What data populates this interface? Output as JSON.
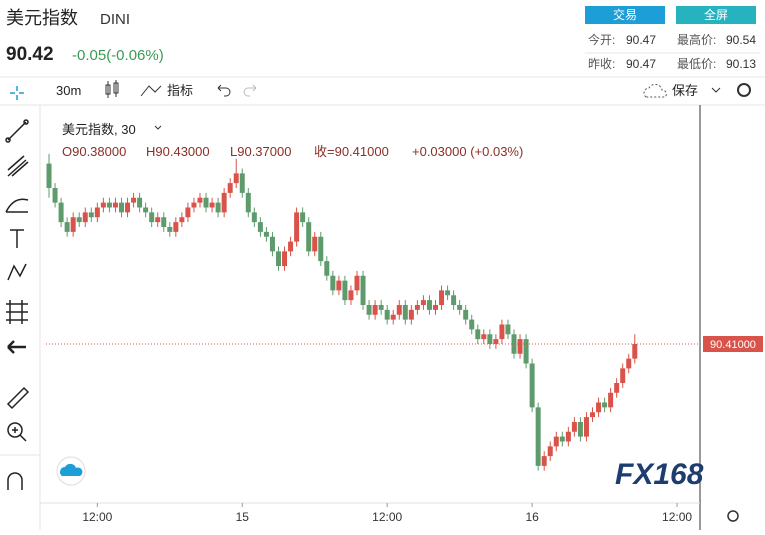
{
  "header": {
    "title": "美元指数",
    "symbol": "DINI",
    "price": "90.42",
    "change": "-0.05(-0.06%)",
    "buttons": [
      "交易",
      "全屏"
    ],
    "stats": [
      [
        "今开:",
        "90.47"
      ],
      [
        "最高价:",
        "90.54"
      ],
      [
        "昨收:",
        "90.47"
      ],
      [
        "最低价:",
        "90.13"
      ]
    ]
  },
  "toolbar": {
    "interval": "30m",
    "indicators": "指标",
    "save": "保存"
  },
  "chart_data": {
    "type": "candlestick",
    "legend_title": "美元指数, 30",
    "legend_values": [
      "O90.38000",
      "H90.43000",
      "L90.37000",
      "收=90.41000",
      "+0.03000 (+0.03%)"
    ],
    "watermark": "FX168",
    "up_color": "#d9534a",
    "down_color": "#5d9b6c",
    "last_price": {
      "value": 90.41,
      "label": "90.41000"
    },
    "xlim": [
      7.75,
      61.9
    ],
    "ylim": [
      90.09,
      90.89
    ],
    "xticks": [
      {
        "value": 12,
        "label": "12:00"
      },
      {
        "value": 24,
        "label": "15"
      },
      {
        "value": 36,
        "label": "12:00"
      },
      {
        "value": 48,
        "label": "16"
      },
      {
        "value": 60,
        "label": "12:00"
      }
    ],
    "x": [
      8,
      8.5,
      9,
      9.5,
      10,
      10.5,
      11,
      11.5,
      12,
      12.5,
      13,
      13.5,
      14,
      14.5,
      15,
      15.5,
      16,
      16.5,
      17,
      17.5,
      18,
      18.5,
      19,
      19.5,
      20,
      20.5,
      21,
      21.5,
      22,
      22.5,
      23,
      23.5,
      24,
      24.5,
      25,
      25.5,
      26,
      26.5,
      27,
      27.5,
      28,
      28.5,
      29,
      29.5,
      30,
      30.5,
      31,
      31.5,
      32,
      32.5,
      33,
      33.5,
      34,
      34.5,
      35,
      35.5,
      36,
      36.5,
      37,
      37.5,
      38,
      38.5,
      39,
      39.5,
      40,
      40.5,
      41,
      41.5,
      42,
      42.5,
      43,
      43.5,
      44,
      44.5,
      45,
      45.5,
      46,
      46.5,
      47,
      47.5,
      48,
      48.5,
      49,
      49.5,
      50,
      50.5,
      51,
      51.5,
      52,
      52.5,
      53,
      53.5,
      54,
      54.5,
      55,
      55.5,
      56,
      56.5
    ],
    "ohlc": [
      [
        90.78,
        90.8,
        90.71,
        90.73
      ],
      [
        90.73,
        90.74,
        90.69,
        90.7
      ],
      [
        90.7,
        90.71,
        90.65,
        90.66
      ],
      [
        90.66,
        90.67,
        90.63,
        90.64
      ],
      [
        90.64,
        90.68,
        90.63,
        90.67
      ],
      [
        90.67,
        90.68,
        90.65,
        90.66
      ],
      [
        90.66,
        90.69,
        90.65,
        90.68
      ],
      [
        90.68,
        90.69,
        90.66,
        90.67
      ],
      [
        90.67,
        90.7,
        90.66,
        90.69
      ],
      [
        90.69,
        90.71,
        90.68,
        90.7
      ],
      [
        90.7,
        90.71,
        90.68,
        90.69
      ],
      [
        90.69,
        90.71,
        90.68,
        90.7
      ],
      [
        90.7,
        90.71,
        90.67,
        90.68
      ],
      [
        90.68,
        90.71,
        90.67,
        90.7
      ],
      [
        90.7,
        90.72,
        90.69,
        90.71
      ],
      [
        90.71,
        90.72,
        90.68,
        90.69
      ],
      [
        90.69,
        90.7,
        90.67,
        90.68
      ],
      [
        90.68,
        90.69,
        90.65,
        90.66
      ],
      [
        90.66,
        90.68,
        90.65,
        90.67
      ],
      [
        90.67,
        90.68,
        90.64,
        90.65
      ],
      [
        90.65,
        90.66,
        90.63,
        90.64
      ],
      [
        90.64,
        90.67,
        90.63,
        90.66
      ],
      [
        90.66,
        90.68,
        90.65,
        90.67
      ],
      [
        90.67,
        90.7,
        90.66,
        90.69
      ],
      [
        90.69,
        90.71,
        90.68,
        90.7
      ],
      [
        90.7,
        90.72,
        90.69,
        90.71
      ],
      [
        90.71,
        90.72,
        90.68,
        90.69
      ],
      [
        90.69,
        90.71,
        90.68,
        90.7
      ],
      [
        90.7,
        90.71,
        90.67,
        90.68
      ],
      [
        90.68,
        90.73,
        90.67,
        90.72
      ],
      [
        90.72,
        90.75,
        90.71,
        90.74
      ],
      [
        90.74,
        90.79,
        90.73,
        90.76
      ],
      [
        90.76,
        90.77,
        90.71,
        90.72
      ],
      [
        90.72,
        90.73,
        90.67,
        90.68
      ],
      [
        90.68,
        90.69,
        90.65,
        90.66
      ],
      [
        90.66,
        90.67,
        90.63,
        90.64
      ],
      [
        90.64,
        90.65,
        90.62,
        90.63
      ],
      [
        90.63,
        90.64,
        90.59,
        90.6
      ],
      [
        90.6,
        90.61,
        90.56,
        90.57
      ],
      [
        90.57,
        90.61,
        90.56,
        90.6
      ],
      [
        90.6,
        90.63,
        90.59,
        90.62
      ],
      [
        90.62,
        90.69,
        90.61,
        90.68
      ],
      [
        90.68,
        90.69,
        90.65,
        90.66
      ],
      [
        90.66,
        90.67,
        90.59,
        90.6
      ],
      [
        90.6,
        90.64,
        90.59,
        90.63
      ],
      [
        90.63,
        90.64,
        90.57,
        90.58
      ],
      [
        90.58,
        90.59,
        90.54,
        90.55
      ],
      [
        90.55,
        90.56,
        90.51,
        90.52
      ],
      [
        90.52,
        90.55,
        90.51,
        90.54
      ],
      [
        90.54,
        90.55,
        90.49,
        90.5
      ],
      [
        90.5,
        90.53,
        90.49,
        90.52
      ],
      [
        90.52,
        90.56,
        90.51,
        90.55
      ],
      [
        90.55,
        90.56,
        90.48,
        90.49
      ],
      [
        90.49,
        90.5,
        90.46,
        90.47
      ],
      [
        90.47,
        90.5,
        90.46,
        90.49
      ],
      [
        90.49,
        90.5,
        90.47,
        90.48
      ],
      [
        90.48,
        90.49,
        90.45,
        90.46
      ],
      [
        90.46,
        90.48,
        90.45,
        90.47
      ],
      [
        90.47,
        90.5,
        90.46,
        90.49
      ],
      [
        90.49,
        90.5,
        90.45,
        90.46
      ],
      [
        90.46,
        90.49,
        90.45,
        90.48
      ],
      [
        90.48,
        90.5,
        90.47,
        90.49
      ],
      [
        90.49,
        90.51,
        90.48,
        90.5
      ],
      [
        90.5,
        90.51,
        90.47,
        90.48
      ],
      [
        90.48,
        90.5,
        90.47,
        90.49
      ],
      [
        90.49,
        90.53,
        90.48,
        90.52
      ],
      [
        90.52,
        90.53,
        90.5,
        90.51
      ],
      [
        90.51,
        90.52,
        90.48,
        90.49
      ],
      [
        90.49,
        90.5,
        90.47,
        90.48
      ],
      [
        90.48,
        90.49,
        90.45,
        90.46
      ],
      [
        90.46,
        90.47,
        90.43,
        90.44
      ],
      [
        90.44,
        90.45,
        90.41,
        90.42
      ],
      [
        90.42,
        90.44,
        90.41,
        90.43
      ],
      [
        90.43,
        90.44,
        90.4,
        90.41
      ],
      [
        90.41,
        90.43,
        90.4,
        90.42
      ],
      [
        90.42,
        90.46,
        90.41,
        90.45
      ],
      [
        90.45,
        90.46,
        90.42,
        90.43
      ],
      [
        90.43,
        90.44,
        90.38,
        90.39
      ],
      [
        90.39,
        90.43,
        90.38,
        90.42
      ],
      [
        90.42,
        90.43,
        90.36,
        90.37
      ],
      [
        90.37,
        90.38,
        90.27,
        90.28
      ],
      [
        90.28,
        90.29,
        90.15,
        90.16
      ],
      [
        90.16,
        90.19,
        90.15,
        90.18
      ],
      [
        90.18,
        90.21,
        90.17,
        90.2
      ],
      [
        90.2,
        90.23,
        90.19,
        90.22
      ],
      [
        90.22,
        90.23,
        90.2,
        90.21
      ],
      [
        90.21,
        90.24,
        90.2,
        90.23
      ],
      [
        90.23,
        90.26,
        90.22,
        90.25
      ],
      [
        90.25,
        90.26,
        90.21,
        90.22
      ],
      [
        90.22,
        90.27,
        90.21,
        90.26
      ],
      [
        90.26,
        90.28,
        90.25,
        90.27
      ],
      [
        90.27,
        90.3,
        90.26,
        90.29
      ],
      [
        90.29,
        90.3,
        90.27,
        90.28
      ],
      [
        90.28,
        90.32,
        90.27,
        90.31
      ],
      [
        90.31,
        90.34,
        90.3,
        90.33
      ],
      [
        90.33,
        90.37,
        90.32,
        90.36
      ],
      [
        90.36,
        90.39,
        90.35,
        90.38
      ],
      [
        90.38,
        90.43,
        90.37,
        90.41
      ]
    ]
  }
}
